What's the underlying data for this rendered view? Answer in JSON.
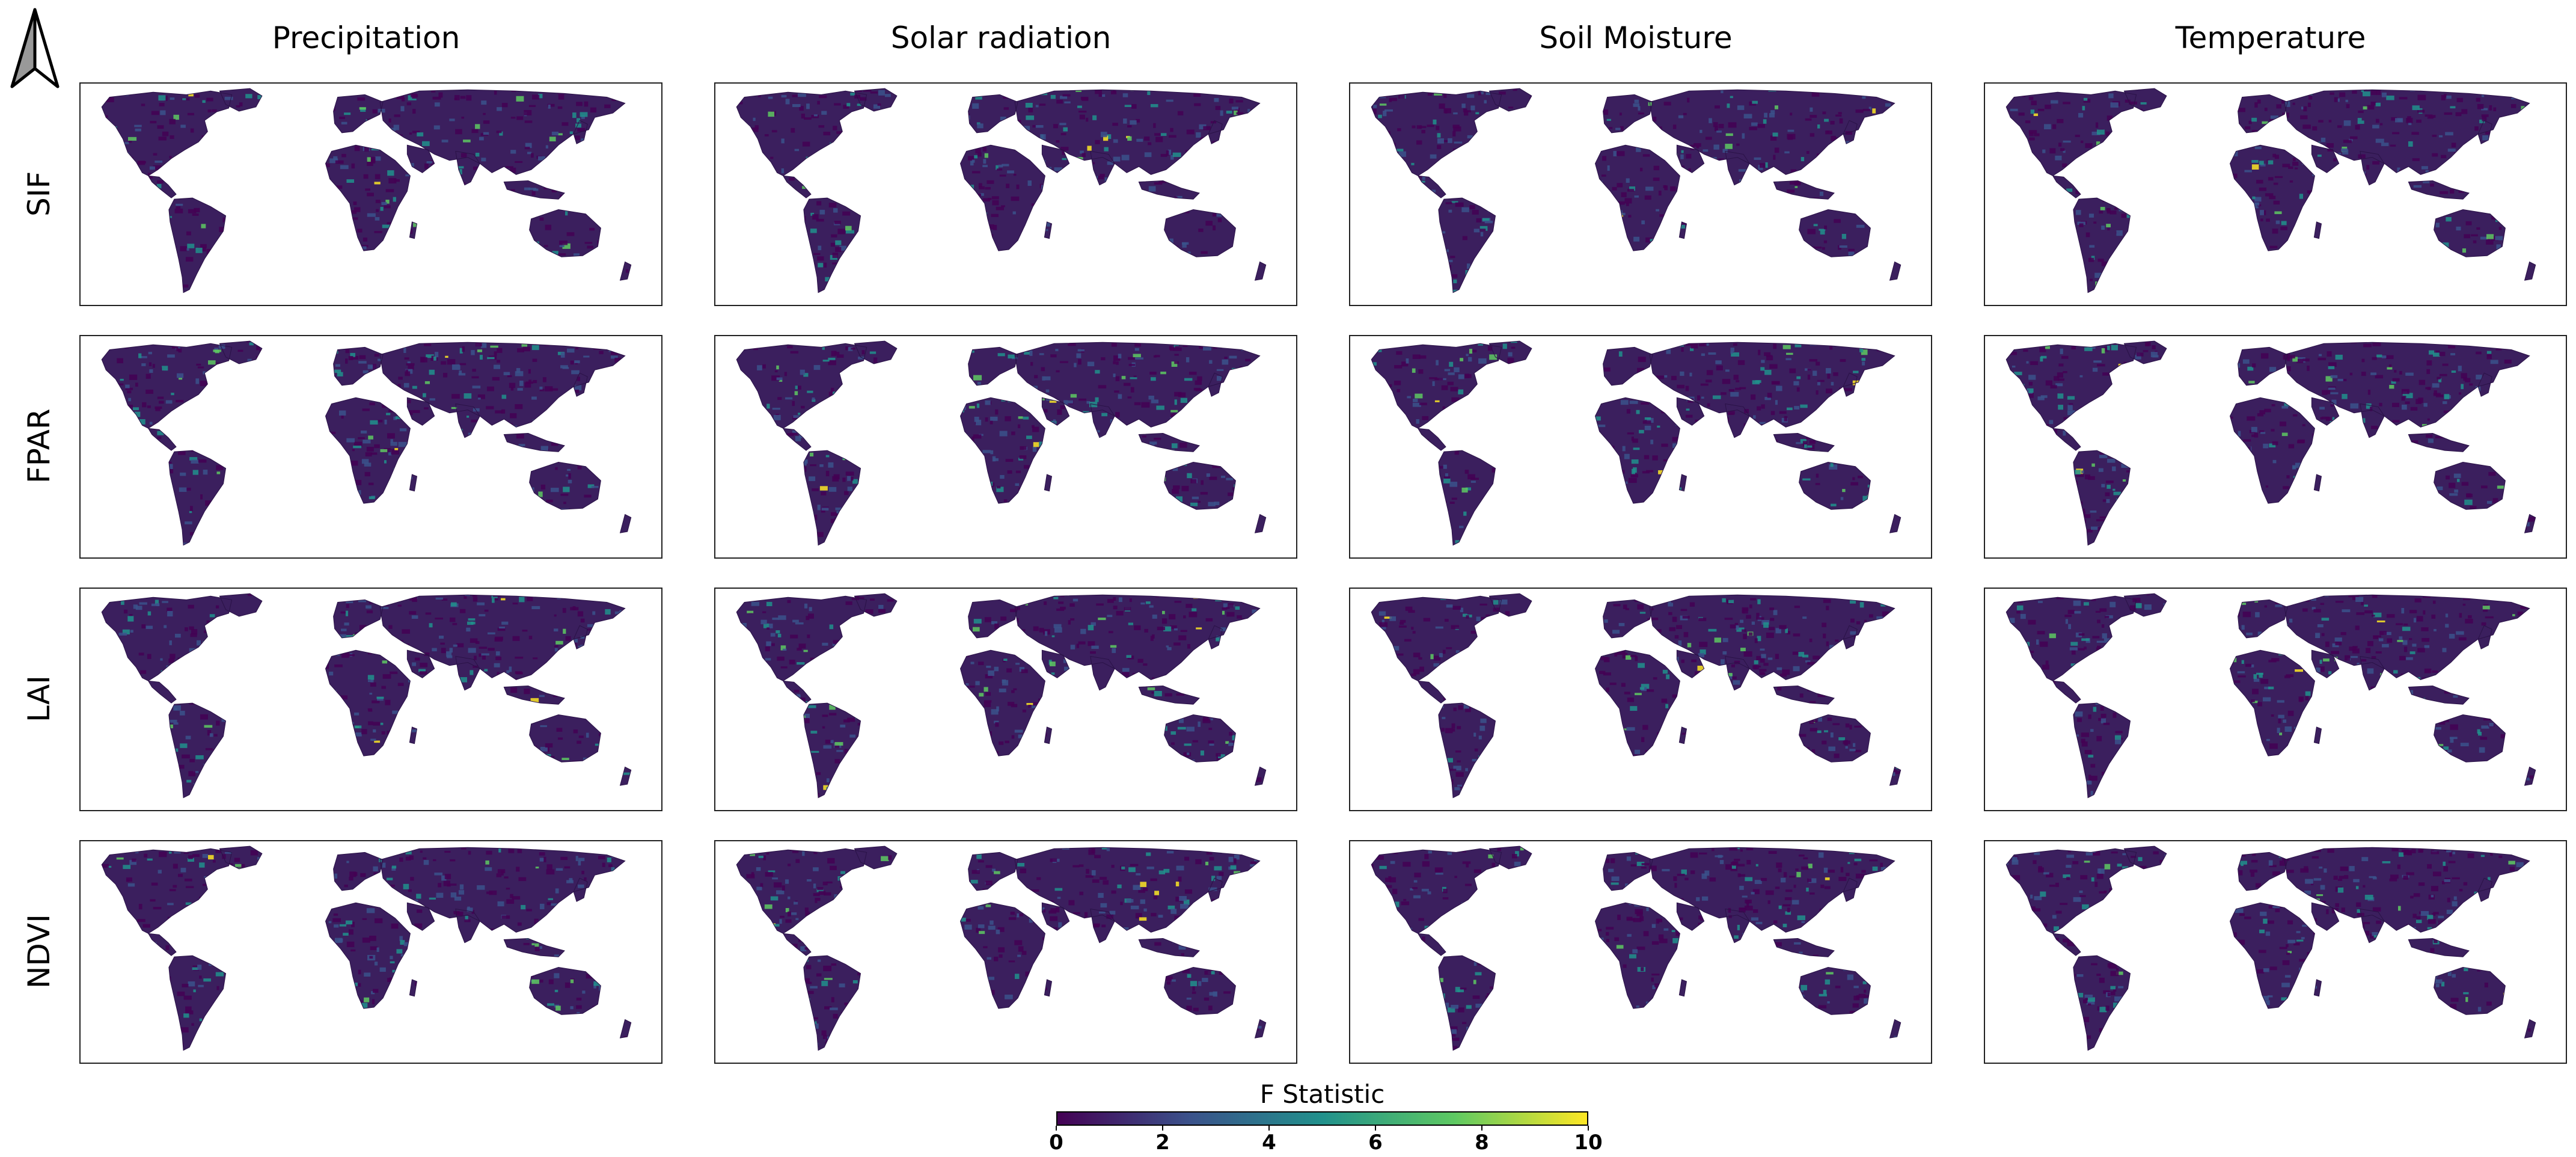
{
  "figure": {
    "columns": [
      {
        "id": "precipitation",
        "title": "Precipitation"
      },
      {
        "id": "solar",
        "title": "Solar radiation"
      },
      {
        "id": "soil",
        "title": "Soil Moisture"
      },
      {
        "id": "temperature",
        "title": "Temperature"
      }
    ],
    "rows": [
      {
        "id": "sif",
        "label": "SIF"
      },
      {
        "id": "fpar",
        "label": "FPAR"
      },
      {
        "id": "lai",
        "label": "LAI"
      },
      {
        "id": "ndvi",
        "label": "NDVI"
      }
    ]
  },
  "colorbar": {
    "title": "F Statistic",
    "ticks": [
      "0",
      "2",
      "4",
      "6",
      "8",
      "10"
    ],
    "range": [
      0,
      10
    ],
    "colormap": "viridis",
    "colors": [
      "#440154",
      "#3b528b",
      "#21918c",
      "#5ec962",
      "#fde725"
    ]
  },
  "map": {
    "land_color": "#3b1f5e",
    "ocean_color": "#ffffff"
  },
  "chart_data": {
    "type": "heatmap",
    "rows": [
      "SIF",
      "FPAR",
      "LAI",
      "NDVI"
    ],
    "columns": [
      "Precipitation",
      "Solar radiation",
      "Soil Moisture",
      "Temperature"
    ],
    "value_range": [
      0,
      10
    ],
    "colorbar_label": "F Statistic"
  }
}
